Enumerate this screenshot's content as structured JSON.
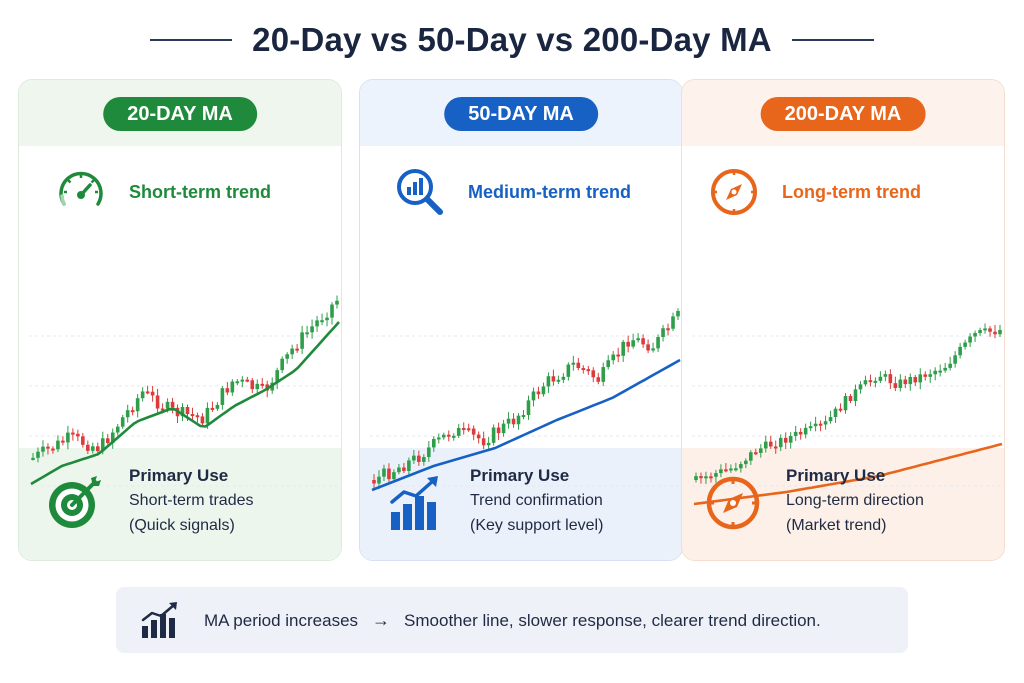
{
  "title": "20-Day vs 50-Day vs 200-Day MA",
  "cards": [
    {
      "badge": "20-DAY MA",
      "trend_label": "Short-term trend",
      "trend_icon": "speedometer-icon",
      "use_title": "Primary Use",
      "use_line1": "Short-term trades",
      "use_line2": "(Quick signals)",
      "use_icon": "target-dart-icon",
      "accent": "#1f8a3b",
      "top_bg": "#eef6ee",
      "bottom_bg": "#edf6ed",
      "border": "#dcebdc"
    },
    {
      "badge": "50-DAY MA",
      "trend_label": "Medium-term trend",
      "trend_icon": "magnifier-chart-icon",
      "use_title": "Primary Use",
      "use_line1": "Trend confirmation",
      "use_line2": "(Key support level)",
      "use_icon": "bar-chart-arrow-icon",
      "accent": "#1760c4",
      "top_bg": "#edf3fc",
      "bottom_bg": "#ebf1fb",
      "border": "#d6e2f4"
    },
    {
      "badge": "200-DAY MA",
      "trend_label": "Long-term trend",
      "trend_icon": "compass-icon",
      "use_title": "Primary Use",
      "use_line1": "Long-term direction",
      "use_line2": "(Market trend)",
      "use_icon": "compass-icon",
      "accent": "#e8661c",
      "top_bg": "#fdf2ec",
      "bottom_bg": "#fcf0e8",
      "border": "#f5ddd0"
    }
  ],
  "note": {
    "icon": "bar-chart-arrow-icon",
    "left": "MA period increases",
    "arrow": "→",
    "right": "Smoother line, slower response, clearer trend direction."
  },
  "candle_colors": {
    "up": "#2e9e4a",
    "down": "#dc3b3b"
  }
}
